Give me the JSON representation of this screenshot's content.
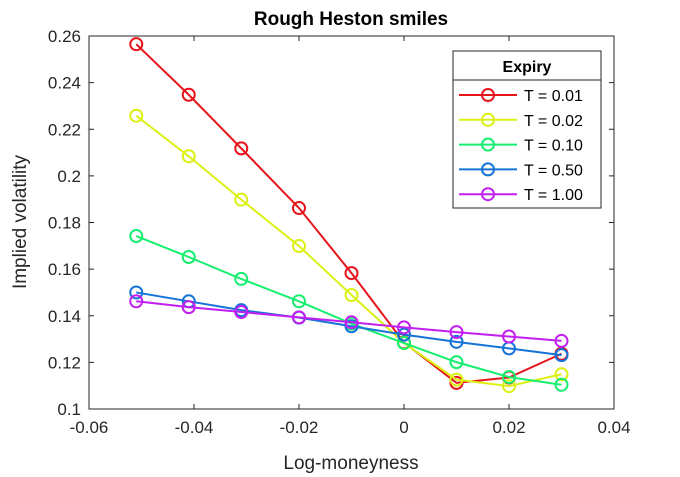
{
  "chart_data": {
    "type": "line",
    "title": "Rough Heston smiles",
    "xlabel": "Log-moneyness",
    "ylabel": "Implied volatility",
    "xlim": [
      -0.06,
      0.04
    ],
    "ylim": [
      0.1,
      0.26
    ],
    "xticks": [
      "-0.06",
      "-0.04",
      "-0.02",
      "0",
      "0.02",
      "0.04"
    ],
    "yticks": [
      "0.1",
      "0.12",
      "0.14",
      "0.16",
      "0.18",
      "0.2",
      "0.22",
      "0.24",
      "0.26"
    ],
    "grid": false,
    "legend": {
      "title": "Expiry",
      "placement": "top-right"
    },
    "x": [
      -0.051,
      -0.041,
      -0.031,
      -0.02,
      -0.01,
      0.0,
      0.01,
      0.02,
      0.03
    ],
    "series": [
      {
        "name": "T = 0.01",
        "color": "#e6151b",
        "values": [
          0.2565,
          0.2348,
          0.2118,
          0.1862,
          0.1583,
          0.1285,
          0.1112,
          0.1135,
          0.1237
        ]
      },
      {
        "name": "T = 0.02",
        "color": "#dcf013",
        "values": [
          0.2258,
          0.2084,
          0.1898,
          0.1699,
          0.1489,
          0.1283,
          0.1126,
          0.1098,
          0.1149
        ]
      },
      {
        "name": "T = 0.10",
        "color": "#17ef6f",
        "values": [
          0.1742,
          0.1652,
          0.1558,
          0.1462,
          0.1366,
          0.1283,
          0.1201,
          0.1137,
          0.1104
        ]
      },
      {
        "name": "T = 0.50",
        "color": "#1673d8",
        "values": [
          0.15,
          0.1462,
          0.1424,
          0.1392,
          0.1355,
          0.1319,
          0.1288,
          0.126,
          0.1231
        ]
      },
      {
        "name": "T = 1.00",
        "color": "#c21ff0",
        "values": [
          0.1462,
          0.1437,
          0.1416,
          0.1393,
          0.1372,
          0.135,
          0.133,
          0.1311,
          0.1292
        ]
      }
    ]
  }
}
